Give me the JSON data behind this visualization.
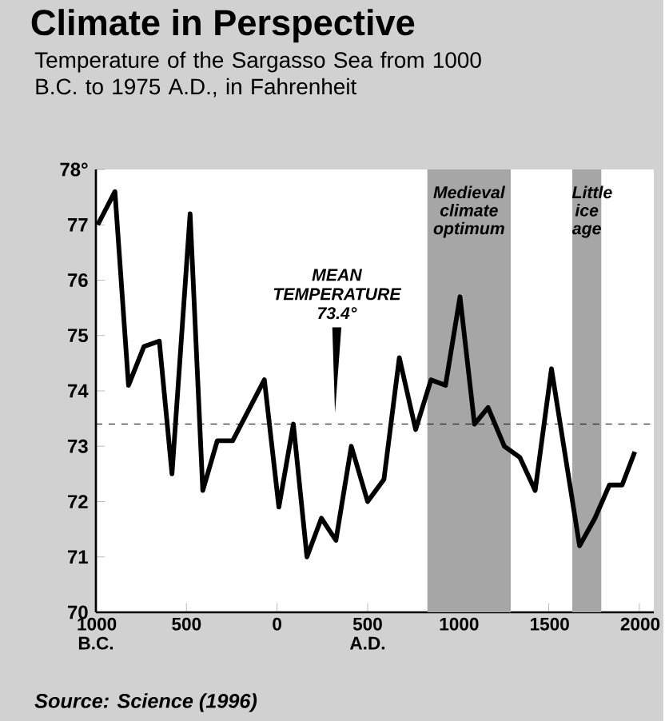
{
  "chart_data": {
    "type": "line",
    "title": "Climate in Perspective",
    "subtitle": "Temperature of the Sargasso Sea from 1000 B.C. to 1975 A.D., in Fahrenheit",
    "annotations": [
      "Source: Science (1996)"
    ],
    "x": [
      -990,
      -895,
      -820,
      -735,
      -650,
      -580,
      -480,
      -410,
      -330,
      -245,
      -70,
      10,
      90,
      165,
      245,
      325,
      410,
      500,
      590,
      675,
      765,
      850,
      930,
      1010,
      1090,
      1165,
      1255,
      1340,
      1425,
      1515,
      1670,
      1755,
      1835,
      1905,
      1975
    ],
    "values": [
      77.0,
      77.6,
      74.1,
      74.8,
      74.9,
      72.5,
      77.2,
      72.2,
      73.1,
      73.1,
      74.2,
      71.9,
      73.4,
      71.0,
      71.7,
      71.3,
      73.0,
      72.0,
      72.4,
      74.6,
      73.3,
      74.2,
      74.1,
      75.7,
      73.4,
      73.7,
      73.0,
      72.8,
      72.2,
      74.4,
      71.2,
      71.7,
      72.3,
      72.3,
      72.9
    ],
    "color": "#000000",
    "xlim": [
      -1000,
      2080
    ],
    "ylim": [
      70,
      78
    ],
    "xticks": [
      {
        "value": -1000,
        "label": "1000 B.C."
      },
      {
        "value": -500,
        "label": "500"
      },
      0,
      {
        "value": 500,
        "label": "500 A.D."
      },
      1000,
      1500,
      2000
    ],
    "yticks": [
      70,
      71,
      72,
      73,
      74,
      75,
      76,
      77,
      {
        "value": 78,
        "label": "78°"
      }
    ],
    "ref_lines": [
      {
        "axis": "y",
        "value": 73.4,
        "label": "MEAN TEMPERATURE 73.4°",
        "line_style": "dashed"
      }
    ],
    "bands": [
      {
        "axis": "x",
        "from": 830,
        "to": 1290,
        "label": "Medieval climate optimum",
        "color": "#a6a6a6"
      },
      {
        "axis": "x",
        "from": 1630,
        "to": 1790,
        "label": "Little ice age",
        "color": "#a6a6a6"
      }
    ]
  }
}
